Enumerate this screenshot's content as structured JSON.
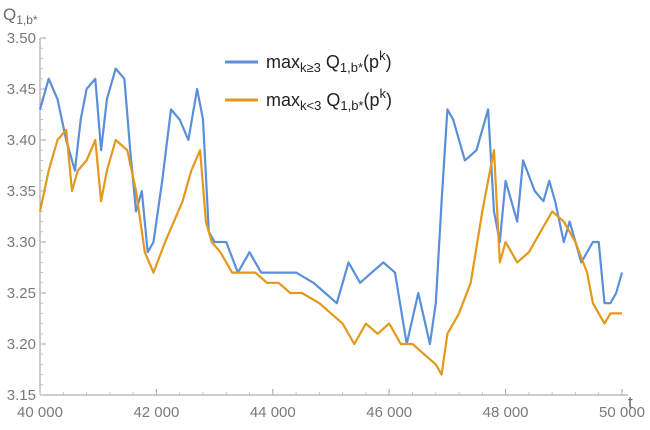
{
  "chart_data": {
    "type": "line",
    "ylabel_main": "Q",
    "ylabel_sub": "1,b*",
    "xlabel": "t",
    "xlim": [
      40000,
      50000
    ],
    "ylim": [
      3.15,
      3.5
    ],
    "x_ticks": [
      40000,
      42000,
      44000,
      46000,
      48000,
      50000
    ],
    "x_tick_labels": [
      "40 000",
      "42 000",
      "44 000",
      "46 000",
      "48 000",
      "50 000"
    ],
    "y_ticks": [
      3.15,
      3.2,
      3.25,
      3.3,
      3.35,
      3.4,
      3.45,
      3.5
    ],
    "y_tick_labels": [
      "3.15",
      "3.20",
      "3.25",
      "3.30",
      "3.35",
      "3.40",
      "3.45",
      "3.50"
    ],
    "legend_position": "top-center",
    "series": [
      {
        "name": "max_{k≥3} Q_{1,b*}(p^k)",
        "legend": {
          "pre": "max",
          "sub1": "k≥3",
          "mid": " Q",
          "sub2": "1,b*",
          "post": "(p",
          "sup": "k",
          "end": ")"
        },
        "color": "#5b8fd9",
        "x": [
          40000,
          40150,
          40300,
          40450,
          40600,
          40700,
          40800,
          40950,
          41050,
          41150,
          41300,
          41450,
          41550,
          41650,
          41750,
          41850,
          41950,
          42100,
          42250,
          42400,
          42550,
          42700,
          42800,
          42900,
          43000,
          43200,
          43400,
          43600,
          43800,
          44000,
          44200,
          44400,
          44700,
          44900,
          45100,
          45300,
          45500,
          45700,
          45900,
          46100,
          46300,
          46500,
          46700,
          46800,
          46900,
          47000,
          47100,
          47300,
          47500,
          47700,
          47800,
          47900,
          48000,
          48200,
          48300,
          48500,
          48650,
          48750,
          48850,
          49000,
          49100,
          49300,
          49500,
          49600,
          49700,
          49800,
          49900,
          50000
        ],
        "y": [
          3.43,
          3.46,
          3.44,
          3.4,
          3.37,
          3.42,
          3.45,
          3.46,
          3.39,
          3.44,
          3.47,
          3.46,
          3.39,
          3.33,
          3.35,
          3.29,
          3.3,
          3.36,
          3.43,
          3.42,
          3.4,
          3.45,
          3.42,
          3.31,
          3.3,
          3.3,
          3.27,
          3.29,
          3.27,
          3.27,
          3.27,
          3.27,
          3.26,
          3.25,
          3.24,
          3.28,
          3.26,
          3.27,
          3.28,
          3.27,
          3.2,
          3.25,
          3.2,
          3.24,
          3.34,
          3.43,
          3.42,
          3.38,
          3.39,
          3.43,
          3.33,
          3.3,
          3.36,
          3.32,
          3.38,
          3.35,
          3.34,
          3.36,
          3.34,
          3.3,
          3.32,
          3.28,
          3.3,
          3.3,
          3.24,
          3.24,
          3.25,
          3.27
        ]
      },
      {
        "name": "max_{k<3} Q_{1,b*}(p^k)",
        "legend": {
          "pre": "max",
          "sub1": "k<3",
          "mid": " Q",
          "sub2": "1,b*",
          "post": "(p",
          "sup": "k",
          "end": ")"
        },
        "color": "#e3991b",
        "x": [
          40000,
          40150,
          40300,
          40450,
          40550,
          40650,
          40800,
          40950,
          41050,
          41150,
          41300,
          41500,
          41650,
          41800,
          41950,
          42150,
          42300,
          42450,
          42600,
          42750,
          42850,
          42950,
          43100,
          43300,
          43500,
          43700,
          43900,
          44100,
          44300,
          44500,
          44800,
          45000,
          45200,
          45400,
          45600,
          45800,
          46000,
          46200,
          46400,
          46600,
          46800,
          46900,
          47000,
          47200,
          47400,
          47600,
          47700,
          47800,
          47900,
          48000,
          48200,
          48400,
          48600,
          48800,
          49000,
          49200,
          49400,
          49500,
          49600,
          49700,
          49800,
          49900,
          50000
        ],
        "y": [
          3.33,
          3.37,
          3.4,
          3.41,
          3.35,
          3.37,
          3.38,
          3.4,
          3.34,
          3.37,
          3.4,
          3.39,
          3.35,
          3.29,
          3.27,
          3.3,
          3.32,
          3.34,
          3.37,
          3.39,
          3.32,
          3.3,
          3.29,
          3.27,
          3.27,
          3.27,
          3.26,
          3.26,
          3.25,
          3.25,
          3.24,
          3.23,
          3.22,
          3.2,
          3.22,
          3.21,
          3.22,
          3.2,
          3.2,
          3.19,
          3.18,
          3.17,
          3.21,
          3.23,
          3.26,
          3.33,
          3.36,
          3.39,
          3.28,
          3.3,
          3.28,
          3.29,
          3.31,
          3.33,
          3.32,
          3.3,
          3.27,
          3.24,
          3.23,
          3.22,
          3.23,
          3.23,
          3.23
        ]
      }
    ]
  }
}
